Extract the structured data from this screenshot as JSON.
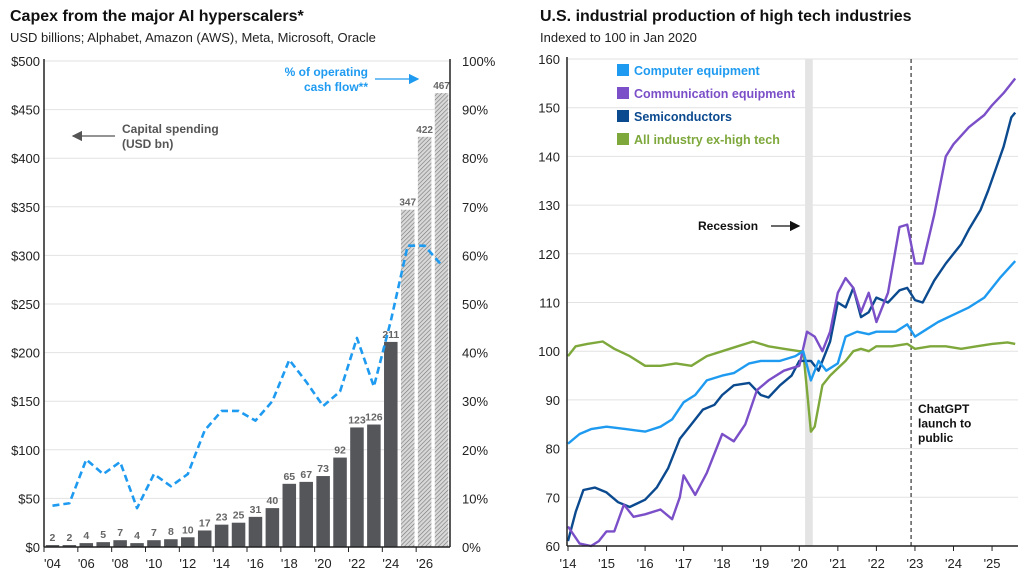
{
  "left": {
    "title": "Capex from the major AI hyperscalers*",
    "subtitle": "USD billions; Alphabet, Amazon (AWS), Meta, Microsoft, Oracle",
    "annotation_capex": [
      "Capital spending",
      "(USD bn)"
    ],
    "annotation_ocf": [
      "% of operating",
      "cash flow**"
    ]
  },
  "right": {
    "title": "U.S. industrial production of high tech industries",
    "subtitle": "Indexed to 100 in Jan 2020",
    "annotation_recession": "Recession",
    "annotation_chatgpt": [
      "ChatGPT",
      "launch to",
      "public"
    ]
  },
  "chart_data": [
    {
      "type": "bar",
      "title": "Capex from the major AI hyperscalers*",
      "subtitle": "USD billions; Alphabet, Amazon (AWS), Meta, Microsoft, Oracle",
      "categories": [
        "2004",
        "2005",
        "2006",
        "2007",
        "2008",
        "2009",
        "2010",
        "2011",
        "2012",
        "2013",
        "2014",
        "2015",
        "2016",
        "2017",
        "2018",
        "2019",
        "2020",
        "2021",
        "2022",
        "2023",
        "2024",
        "2025",
        "2026",
        "2027"
      ],
      "x_tick_labels": [
        "'04",
        "'06",
        "'08",
        "'10",
        "'12",
        "'14",
        "'16",
        "'18",
        "'20",
        "'22",
        "'24",
        "'26"
      ],
      "series": [
        {
          "name": "Capital spending (USD bn)",
          "axis": "left",
          "kind": "bar",
          "color": "#54565a",
          "values": [
            2,
            2,
            4,
            5,
            7,
            4,
            7,
            8,
            10,
            17,
            23,
            25,
            31,
            40,
            65,
            67,
            73,
            92,
            123,
            126,
            211,
            347,
            422,
            467
          ],
          "estimated_from_index": 21
        },
        {
          "name": "% of operating cash flow**",
          "axis": "right",
          "kind": "dashed-line",
          "color": "#1e9bf0",
          "values": [
            8.5,
            9,
            18,
            15,
            17.5,
            8,
            15,
            12.5,
            15,
            24,
            28,
            28,
            26,
            30,
            38.5,
            34,
            29,
            32,
            43,
            33,
            46.5,
            62,
            62,
            58
          ]
        }
      ],
      "y_left": {
        "ticks": [
          "$0",
          "$50",
          "$100",
          "$150",
          "$200",
          "$250",
          "$300",
          "$350",
          "$400",
          "$450",
          "$500"
        ],
        "range": [
          0,
          500
        ]
      },
      "y_right": {
        "ticks": [
          "0%",
          "10%",
          "20%",
          "30%",
          "40%",
          "50%",
          "60%",
          "70%",
          "80%",
          "90%",
          "100%"
        ],
        "range": [
          0,
          100
        ]
      },
      "grid": true
    },
    {
      "type": "line",
      "title": "U.S. industrial production of high tech industries",
      "subtitle": "Indexed to 100 in Jan 2020",
      "x_tick_labels": [
        "'14",
        "'15",
        "'16",
        "'17",
        "'18",
        "'19",
        "'20",
        "'21",
        "'22",
        "'23",
        "'24",
        "'25"
      ],
      "x_range": [
        2014,
        2025.7
      ],
      "y_ticks": [
        "60",
        "70",
        "80",
        "90",
        "100",
        "110",
        "120",
        "130",
        "140",
        "150",
        "160"
      ],
      "y_range": [
        60,
        160
      ],
      "legend_position": "top-left",
      "recession_band": [
        2020.15,
        2020.35
      ],
      "chatgpt_marker": 2022.9,
      "series": [
        {
          "name": "Computer equipment",
          "color": "#1e9bf0",
          "points": [
            [
              2014.0,
              81
            ],
            [
              2014.3,
              83
            ],
            [
              2014.6,
              84
            ],
            [
              2015.0,
              84.5
            ],
            [
              2015.5,
              84
            ],
            [
              2016.0,
              83.5
            ],
            [
              2016.4,
              84.5
            ],
            [
              2016.7,
              86
            ],
            [
              2017.0,
              89.5
            ],
            [
              2017.3,
              91
            ],
            [
              2017.6,
              94
            ],
            [
              2018.0,
              95
            ],
            [
              2018.3,
              95.5
            ],
            [
              2018.7,
              97.5
            ],
            [
              2019.0,
              98
            ],
            [
              2019.5,
              98
            ],
            [
              2019.9,
              99
            ],
            [
              2020.1,
              100
            ],
            [
              2020.3,
              94
            ],
            [
              2020.5,
              98
            ],
            [
              2020.7,
              96
            ],
            [
              2021.0,
              97.5
            ],
            [
              2021.2,
              103
            ],
            [
              2021.5,
              104
            ],
            [
              2021.8,
              103.5
            ],
            [
              2022.0,
              104
            ],
            [
              2022.5,
              104
            ],
            [
              2022.8,
              105.5
            ],
            [
              2023.0,
              103
            ],
            [
              2023.3,
              104.5
            ],
            [
              2023.6,
              106
            ],
            [
              2024.0,
              107.5
            ],
            [
              2024.4,
              109
            ],
            [
              2024.8,
              111
            ],
            [
              2025.2,
              115
            ],
            [
              2025.6,
              118.5
            ]
          ]
        },
        {
          "name": "Communication equipment",
          "color": "#7b4fc8",
          "points": [
            [
              2014.0,
              64
            ],
            [
              2014.3,
              60.5
            ],
            [
              2014.6,
              60
            ],
            [
              2014.8,
              61
            ],
            [
              2015.0,
              63
            ],
            [
              2015.2,
              63
            ],
            [
              2015.45,
              68.5
            ],
            [
              2015.7,
              66
            ],
            [
              2016.0,
              66.5
            ],
            [
              2016.4,
              67.5
            ],
            [
              2016.7,
              65.5
            ],
            [
              2016.9,
              70
            ],
            [
              2017.0,
              74.5
            ],
            [
              2017.3,
              70.5
            ],
            [
              2017.6,
              75
            ],
            [
              2018.0,
              83
            ],
            [
              2018.3,
              81.5
            ],
            [
              2018.6,
              85
            ],
            [
              2018.9,
              92
            ],
            [
              2019.2,
              94
            ],
            [
              2019.6,
              96
            ],
            [
              2020.0,
              97
            ],
            [
              2020.2,
              104
            ],
            [
              2020.4,
              103
            ],
            [
              2020.6,
              100
            ],
            [
              2020.8,
              104
            ],
            [
              2021.0,
              112
            ],
            [
              2021.2,
              115
            ],
            [
              2021.4,
              113
            ],
            [
              2021.6,
              108
            ],
            [
              2021.8,
              112
            ],
            [
              2022.0,
              106
            ],
            [
              2022.3,
              112
            ],
            [
              2022.6,
              125.5
            ],
            [
              2022.8,
              126
            ],
            [
              2023.0,
              118
            ],
            [
              2023.2,
              118
            ],
            [
              2023.5,
              128
            ],
            [
              2023.8,
              140
            ],
            [
              2024.0,
              142.5
            ],
            [
              2024.4,
              146
            ],
            [
              2024.8,
              148.5
            ],
            [
              2025.0,
              150.5
            ],
            [
              2025.3,
              153
            ],
            [
              2025.6,
              156
            ]
          ]
        },
        {
          "name": "Semiconductors",
          "color": "#0b4a8f",
          "points": [
            [
              2014.0,
              61
            ],
            [
              2014.2,
              67
            ],
            [
              2014.4,
              71.5
            ],
            [
              2014.7,
              72
            ],
            [
              2015.0,
              71
            ],
            [
              2015.3,
              69
            ],
            [
              2015.6,
              68
            ],
            [
              2016.0,
              69.5
            ],
            [
              2016.3,
              72
            ],
            [
              2016.6,
              76
            ],
            [
              2016.9,
              82
            ],
            [
              2017.2,
              85
            ],
            [
              2017.5,
              88
            ],
            [
              2017.8,
              89
            ],
            [
              2018.0,
              91
            ],
            [
              2018.3,
              93
            ],
            [
              2018.7,
              93.5
            ],
            [
              2019.0,
              91
            ],
            [
              2019.2,
              90.5
            ],
            [
              2019.5,
              93
            ],
            [
              2019.8,
              95
            ],
            [
              2020.0,
              98
            ],
            [
              2020.3,
              98
            ],
            [
              2020.5,
              96
            ],
            [
              2020.8,
              102
            ],
            [
              2021.0,
              110
            ],
            [
              2021.2,
              109
            ],
            [
              2021.4,
              113
            ],
            [
              2021.6,
              107
            ],
            [
              2021.8,
              108
            ],
            [
              2022.0,
              111
            ],
            [
              2022.3,
              110
            ],
            [
              2022.6,
              112.5
            ],
            [
              2022.8,
              113
            ],
            [
              2023.0,
              110.5
            ],
            [
              2023.2,
              110
            ],
            [
              2023.5,
              114.5
            ],
            [
              2023.8,
              118
            ],
            [
              2024.0,
              120
            ],
            [
              2024.2,
              122
            ],
            [
              2024.4,
              125
            ],
            [
              2024.7,
              129
            ],
            [
              2024.9,
              133
            ],
            [
              2025.1,
              137.5
            ],
            [
              2025.3,
              142
            ],
            [
              2025.5,
              148
            ],
            [
              2025.6,
              149
            ]
          ]
        },
        {
          "name": "All industry ex-high tech",
          "color": "#7ea83b",
          "points": [
            [
              2014.0,
              99
            ],
            [
              2014.2,
              101
            ],
            [
              2014.5,
              101.5
            ],
            [
              2014.9,
              102
            ],
            [
              2015.2,
              100.5
            ],
            [
              2015.6,
              99
            ],
            [
              2016.0,
              97
            ],
            [
              2016.4,
              97
            ],
            [
              2016.8,
              97.5
            ],
            [
              2017.2,
              97
            ],
            [
              2017.6,
              99
            ],
            [
              2018.0,
              100
            ],
            [
              2018.4,
              101
            ],
            [
              2018.8,
              102
            ],
            [
              2019.2,
              101
            ],
            [
              2019.6,
              100.5
            ],
            [
              2020.0,
              100
            ],
            [
              2020.1,
              100
            ],
            [
              2020.2,
              92
            ],
            [
              2020.3,
              83.5
            ],
            [
              2020.4,
              84.5
            ],
            [
              2020.6,
              93
            ],
            [
              2020.8,
              95
            ],
            [
              2021.0,
              96.5
            ],
            [
              2021.2,
              98
            ],
            [
              2021.4,
              100
            ],
            [
              2021.6,
              100.5
            ],
            [
              2021.8,
              100
            ],
            [
              2022.0,
              101
            ],
            [
              2022.4,
              101
            ],
            [
              2022.8,
              101.5
            ],
            [
              2023.0,
              100.5
            ],
            [
              2023.4,
              101
            ],
            [
              2023.8,
              101
            ],
            [
              2024.2,
              100.5
            ],
            [
              2024.6,
              101
            ],
            [
              2025.0,
              101.5
            ],
            [
              2025.4,
              101.8
            ],
            [
              2025.6,
              101.5
            ]
          ]
        }
      ],
      "grid": true
    }
  ]
}
